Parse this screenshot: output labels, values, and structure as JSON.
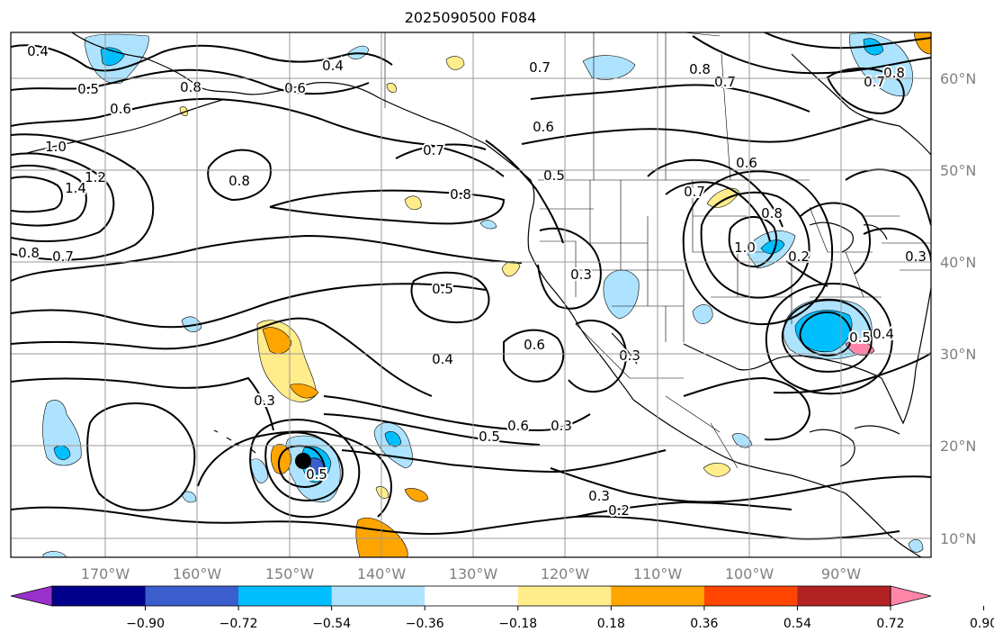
{
  "title": "2025090500 F084",
  "map": {
    "lon_ticks": [
      "170°W",
      "160°W",
      "150°W",
      "140°W",
      "130°W",
      "120°W",
      "110°W",
      "100°W",
      "90°W"
    ],
    "lat_ticks": [
      "60°N",
      "50°N",
      "40°N",
      "30°N",
      "20°N",
      "10°N"
    ],
    "grid": true,
    "storm_marker": "filled-circle"
  },
  "contour_labels": [
    {
      "text": "0.4",
      "region": "northwest-pacific"
    },
    {
      "text": "0.5",
      "region": "bering"
    },
    {
      "text": "0.6",
      "region": "bering"
    },
    {
      "text": "0.8",
      "region": "aleutians"
    },
    {
      "text": "0.6",
      "region": "alaska-south"
    },
    {
      "text": "0.4",
      "region": "alaska-south"
    },
    {
      "text": "0.7",
      "region": "yukon"
    },
    {
      "text": "0.8",
      "region": "arctic-canada"
    },
    {
      "text": "0.7",
      "region": "arctic-canada"
    },
    {
      "text": "0.8",
      "region": "hudson-bay"
    },
    {
      "text": "0.7",
      "region": "hudson-bay"
    },
    {
      "text": "1.0",
      "region": "west-pacific-low"
    },
    {
      "text": "1.4",
      "region": "west-pacific-low"
    },
    {
      "text": "1.2",
      "region": "west-pacific-low"
    },
    {
      "text": "0.8",
      "region": "gulf-of-alaska"
    },
    {
      "text": "0.7",
      "region": "gulf-of-alaska"
    },
    {
      "text": "0.8",
      "region": "northeast-pacific"
    },
    {
      "text": "0.6",
      "region": "british-columbia"
    },
    {
      "text": "0.5",
      "region": "british-columbia"
    },
    {
      "text": "0.8",
      "region": "dateline"
    },
    {
      "text": "0.7",
      "region": "dateline"
    },
    {
      "text": "0.5",
      "region": "central-pacific"
    },
    {
      "text": "0.3",
      "region": "california"
    },
    {
      "text": "0.6",
      "region": "great-plains"
    },
    {
      "text": "0.7",
      "region": "great-plains"
    },
    {
      "text": "1.0",
      "region": "upper-midwest"
    },
    {
      "text": "0.8",
      "region": "great-lakes"
    },
    {
      "text": "0.2",
      "region": "great-lakes"
    },
    {
      "text": "0.3",
      "region": "atlantic"
    },
    {
      "text": "0.5",
      "region": "southeast-us"
    },
    {
      "text": "0.4",
      "region": "southeast-us"
    },
    {
      "text": "0.4",
      "region": "subtropical-pacific"
    },
    {
      "text": "0.6",
      "region": "baja"
    },
    {
      "text": "0.3",
      "region": "sonora"
    },
    {
      "text": "0.3",
      "region": "hawaii"
    },
    {
      "text": "0.5",
      "region": "tropical-east-pacific"
    },
    {
      "text": "0.6",
      "region": "tropical-east-pacific"
    },
    {
      "text": "0.3",
      "region": "tropical-east-pacific"
    },
    {
      "text": "0.3",
      "region": "mexico-coast"
    },
    {
      "text": "0.2",
      "region": "mexico-coast"
    },
    {
      "text": "0.5",
      "region": "storm-core"
    }
  ],
  "colorbar": {
    "colors": [
      "#9932cc",
      "#00008b",
      "#3a5fcd",
      "#00bfff",
      "#aee3ff",
      "#ffffff",
      "#ffec8b",
      "#ffa500",
      "#ff4500",
      "#b22222",
      "#ff86a8"
    ],
    "tick_labels": [
      "−0.90",
      "−0.72",
      "−0.54",
      "−0.36",
      "−0.18",
      "0.18",
      "0.36",
      "0.54",
      "0.72",
      "0.90"
    ],
    "extend": "both"
  }
}
